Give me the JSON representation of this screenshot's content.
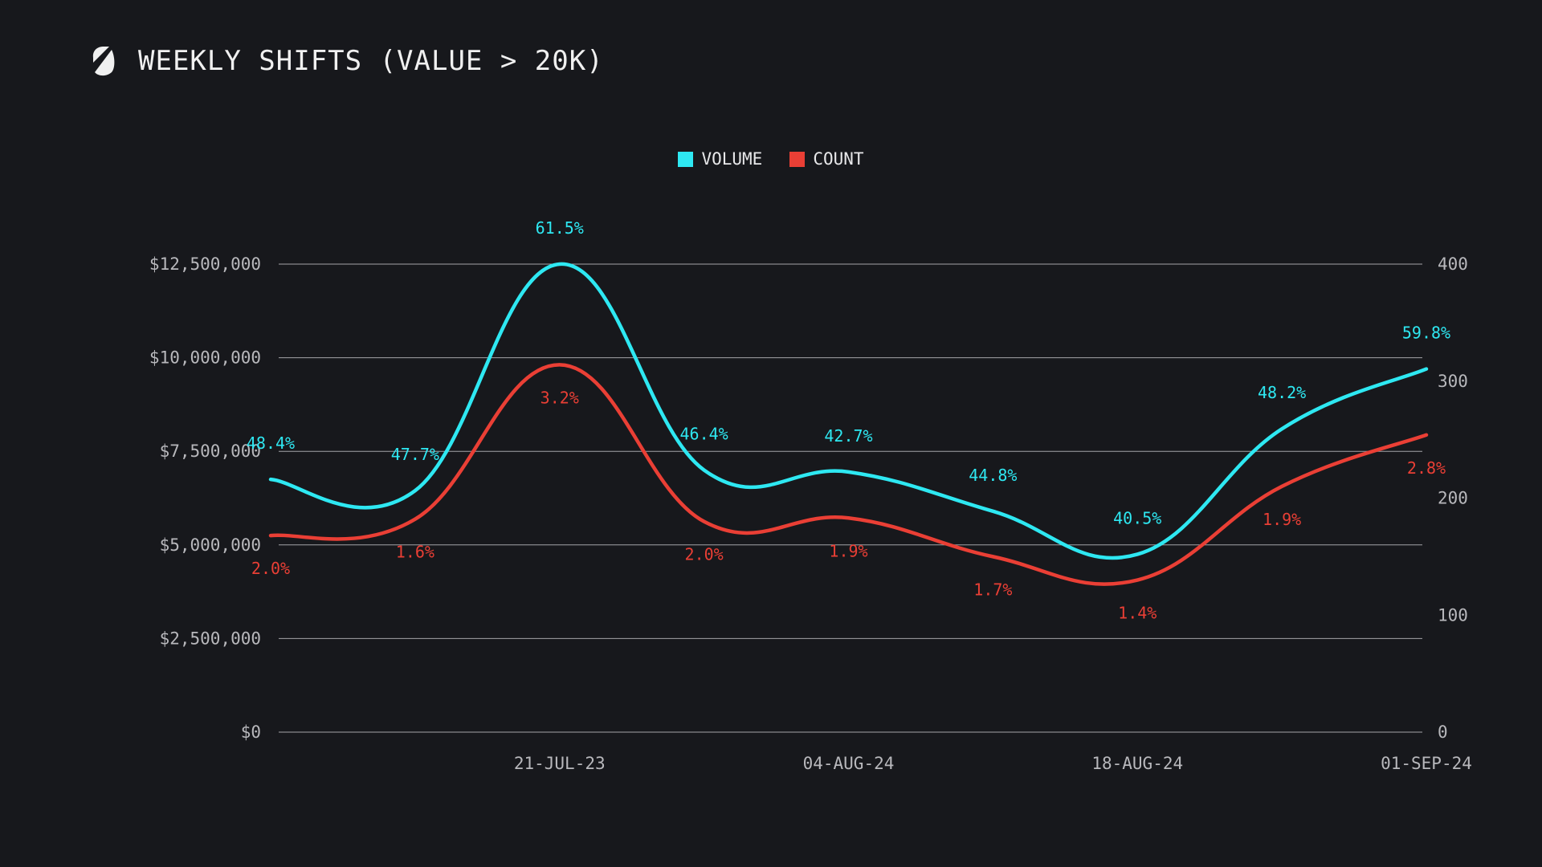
{
  "header": {
    "title": "WEEKLY SHIFTS (VALUE > 20K)",
    "logo": "s-logo-icon"
  },
  "colors": {
    "background": "#17181c",
    "volume": "#2ee8f2",
    "count": "#ea3f35",
    "grid": "#c8c8cc",
    "axis_text": "#b8b8bc"
  },
  "chart_data": {
    "type": "line",
    "title": "WEEKLY SHIFTS (VALUE > 20K)",
    "legend": {
      "placement": "top-center",
      "entries": [
        "VOLUME",
        "COUNT"
      ]
    },
    "grid": true,
    "x_tick_labels": [
      {
        "index": 2,
        "label": "21-JUL-23"
      },
      {
        "index": 4,
        "label": "04-AUG-24"
      },
      {
        "index": 6,
        "label": "18-AUG-24"
      },
      {
        "index": 8,
        "label": "01-SEP-24"
      }
    ],
    "left_axis": {
      "ylim": [
        0,
        12500000
      ],
      "ticks": [
        "$0",
        "$2,500,000",
        "$5,000,000",
        "$7,500,000",
        "$10,000,000",
        "$12,500,000"
      ],
      "tick_values": [
        0,
        2500000,
        5000000,
        7500000,
        10000000,
        12500000
      ]
    },
    "right_axis": {
      "ylim": [
        0,
        400
      ],
      "ticks": [
        "0",
        "100",
        "200",
        "300",
        "400"
      ],
      "tick_values": [
        0,
        100,
        200,
        300,
        400
      ]
    },
    "series": [
      {
        "name": "VOLUME",
        "axis": "left",
        "values": [
          6750000,
          6450000,
          12500000,
          7000000,
          6950000,
          5900000,
          4750000,
          8100000,
          9700000
        ],
        "labels": [
          "48.4%",
          "47.7%",
          "61.5%",
          "46.4%",
          "42.7%",
          "44.8%",
          "40.5%",
          "48.2%",
          "59.8%"
        ]
      },
      {
        "name": "COUNT",
        "axis": "right",
        "values": [
          168,
          182,
          314,
          180,
          183,
          150,
          130,
          210,
          254
        ],
        "labels": [
          "2.0%",
          "1.6%",
          "3.2%",
          "2.0%",
          "1.9%",
          "1.7%",
          "1.4%",
          "1.9%",
          "2.8%"
        ]
      }
    ]
  }
}
